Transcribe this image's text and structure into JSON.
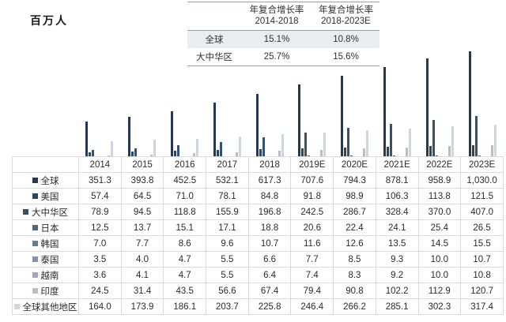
{
  "unit_label": "百万人",
  "cagr_table": {
    "col1": {
      "line1": "年复合增长率",
      "line2": "2014-2018"
    },
    "col2": {
      "line1": "年复合增长率",
      "line2": "2018-2023E"
    },
    "rows": [
      {
        "label": "全球",
        "v1": "15.1%",
        "v2": "10.8%"
      },
      {
        "label": "大中华区",
        "v1": "25.7%",
        "v2": "15.6%"
      }
    ]
  },
  "chart_data": {
    "type": "bar",
    "title": "",
    "xlabel": "",
    "ylabel": "百万人",
    "ylim": [
      0,
      1100
    ],
    "grid": false,
    "legend_position": "table-left-column",
    "categories": [
      "2014",
      "2015",
      "2016",
      "2017",
      "2018",
      "2019E",
      "2020E",
      "2021E",
      "2022E",
      "2023E"
    ],
    "series": [
      {
        "name": "全球",
        "color": "#24384e",
        "values": [
          351.3,
          393.8,
          452.5,
          532.1,
          617.3,
          707.6,
          794.3,
          878.1,
          958.9,
          1030.0
        ]
      },
      {
        "name": "美国",
        "color": "#2c445e",
        "values": [
          57.4,
          64.5,
          71.0,
          78.1,
          84.8,
          91.8,
          98.9,
          106.3,
          113.8,
          121.5
        ]
      },
      {
        "name": "大中华区",
        "color": "#35516e",
        "values": [
          78.9,
          94.5,
          118.8,
          155.9,
          196.8,
          242.5,
          286.7,
          328.4,
          370.0,
          407.0
        ]
      },
      {
        "name": "日本",
        "color": "#4d6681",
        "values": [
          12.5,
          13.7,
          15.1,
          17.1,
          18.8,
          20.6,
          22.4,
          24.1,
          25.4,
          26.5
        ]
      },
      {
        "name": "韩国",
        "color": "#647c95",
        "values": [
          7.0,
          7.7,
          8.6,
          9.6,
          10.7,
          11.6,
          12.6,
          13.5,
          14.5,
          15.5
        ]
      },
      {
        "name": "泰国",
        "color": "#8194a9",
        "values": [
          3.5,
          4.0,
          4.7,
          5.5,
          6.6,
          7.7,
          8.5,
          9.3,
          10.0,
          10.7
        ]
      },
      {
        "name": "越南",
        "color": "#9ba9bb",
        "values": [
          3.6,
          4.1,
          4.7,
          5.5,
          6.4,
          7.4,
          8.3,
          9.2,
          10.0,
          10.8
        ]
      },
      {
        "name": "印度",
        "color": "#b4bfcc",
        "values": [
          24.5,
          31.4,
          43.5,
          56.6,
          67.4,
          79.4,
          90.8,
          102.2,
          112.9,
          120.7
        ]
      },
      {
        "name": "全球其他地区",
        "color": "#ced6df",
        "values": [
          164.0,
          173.9,
          186.1,
          203.7,
          225.8,
          246.4,
          266.2,
          285.1,
          302.3,
          317.4
        ]
      }
    ]
  },
  "table": {
    "header": [
      "2014",
      "2015",
      "2016",
      "2017",
      "2018",
      "2019E",
      "2020E",
      "2021E",
      "2022E",
      "2023E"
    ],
    "rows": [
      {
        "label": "全球",
        "color": "#24384e",
        "values": [
          "351.3",
          "393.8",
          "452.5",
          "532.1",
          "617.3",
          "707.6",
          "794.3",
          "878.1",
          "958.9",
          "1,030.0"
        ]
      },
      {
        "label": "美国",
        "color": "#2c445e",
        "values": [
          "57.4",
          "64.5",
          "71.0",
          "78.1",
          "84.8",
          "91.8",
          "98.9",
          "106.3",
          "113.8",
          "121.5"
        ]
      },
      {
        "label": "大中华区",
        "color": "#35516e",
        "values": [
          "78.9",
          "94.5",
          "118.8",
          "155.9",
          "196.8",
          "242.5",
          "286.7",
          "328.4",
          "370.0",
          "407.0"
        ]
      },
      {
        "label": "日本",
        "color": "#4d6681",
        "values": [
          "12.5",
          "13.7",
          "15.1",
          "17.1",
          "18.8",
          "20.6",
          "22.4",
          "24.1",
          "25.4",
          "26.5"
        ]
      },
      {
        "label": "韩国",
        "color": "#647c95",
        "values": [
          "7.0",
          "7.7",
          "8.6",
          "9.6",
          "10.7",
          "11.6",
          "12.6",
          "13.5",
          "14.5",
          "15.5"
        ]
      },
      {
        "label": "泰国",
        "color": "#8194a9",
        "values": [
          "3.5",
          "4.0",
          "4.7",
          "5.5",
          "6.6",
          "7.7",
          "8.5",
          "9.3",
          "10.0",
          "10.7"
        ]
      },
      {
        "label": "越南",
        "color": "#9ba9bb",
        "values": [
          "3.6",
          "4.1",
          "4.7",
          "5.5",
          "6.4",
          "7.4",
          "8.3",
          "9.2",
          "10.0",
          "10.8"
        ]
      },
      {
        "label": "印度",
        "color": "#b4bfcc",
        "values": [
          "24.5",
          "31.4",
          "43.5",
          "56.6",
          "67.4",
          "79.4",
          "90.8",
          "102.2",
          "112.9",
          "120.7"
        ]
      },
      {
        "label": "全球其他地区",
        "color": "#ced6df",
        "values": [
          "164.0",
          "173.9",
          "186.1",
          "203.7",
          "225.8",
          "246.4",
          "266.2",
          "285.1",
          "302.3",
          "317.4"
        ]
      }
    ]
  }
}
